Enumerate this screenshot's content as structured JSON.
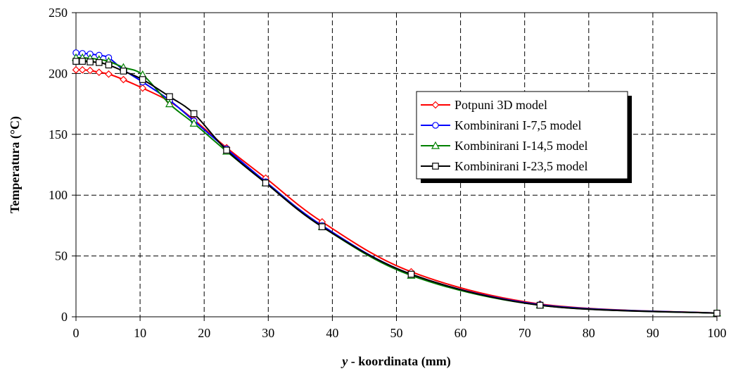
{
  "chart_data": {
    "type": "line",
    "xlabel_var": "y",
    "xlabel_rest": " - koordinata (mm)",
    "ylabel": "Temperatura (°C)",
    "xlim": [
      0,
      100
    ],
    "ylim": [
      0,
      250
    ],
    "xticks": [
      0,
      10,
      20,
      30,
      40,
      50,
      60,
      70,
      80,
      90,
      100
    ],
    "yticks": [
      0,
      50,
      100,
      150,
      200,
      250
    ],
    "grid": true,
    "legend_position": "right",
    "series": [
      {
        "name": "Potpuni 3D model",
        "color": "#ff0000",
        "marker": "diamond",
        "x": [
          0,
          1,
          2.2,
          3.6,
          5.1,
          7.4,
          10.4,
          14.6,
          18.4,
          23.5,
          29.6,
          38.4,
          52.3,
          72.4,
          100
        ],
        "y": [
          203,
          203,
          202.5,
          201,
          199.5,
          195,
          188,
          177,
          162,
          139,
          114,
          78,
          37,
          10.5,
          3
        ]
      },
      {
        "name": "Kombinirani I-7,5 model",
        "color": "#0000ff",
        "marker": "circle",
        "x": [
          0,
          1,
          2.2,
          3.6,
          5.1,
          7.4,
          10.4,
          14.6,
          18.4,
          23.5,
          29.6,
          38.4,
          52.3,
          72.4,
          100
        ],
        "y": [
          217,
          216.5,
          216,
          215,
          213,
          203,
          193,
          178,
          161,
          138,
          111,
          75,
          35,
          10,
          3
        ]
      },
      {
        "name": "Kombinirani I-14,5 model",
        "color": "#008000",
        "marker": "triangle",
        "x": [
          0,
          1,
          2.2,
          3.6,
          5.1,
          7.4,
          10.4,
          14.6,
          18.4,
          23.5,
          29.6,
          38.4,
          52.3,
          72.4,
          100
        ],
        "y": [
          213,
          213,
          212.5,
          211.5,
          210,
          205,
          199,
          175,
          159,
          136,
          110,
          74,
          34,
          9.5,
          3
        ]
      },
      {
        "name": "Kombinirani I-23,5 model",
        "color": "#000000",
        "marker": "square",
        "x": [
          0,
          1,
          2.2,
          3.6,
          5.1,
          7.4,
          10.4,
          14.6,
          18.4,
          23.5,
          29.6,
          38.4,
          52.3,
          72.4,
          100
        ],
        "y": [
          210,
          210,
          209.5,
          209,
          207,
          202,
          195,
          181,
          167,
          137,
          110,
          74,
          35,
          9.5,
          3
        ]
      }
    ]
  }
}
